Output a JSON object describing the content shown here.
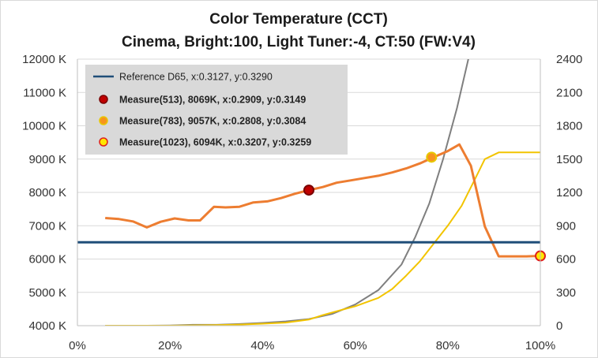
{
  "chart_data": {
    "type": "line",
    "title": "Color Temperature (CCT)",
    "subtitle": "Cinema, Bright:100, Light Tuner:-4, CT:50 (FW:V4)",
    "xlabel": "",
    "ylabel": "",
    "xlim": [
      0,
      100
    ],
    "ylim": [
      4000,
      12000
    ],
    "y2lim": [
      0,
      2400
    ],
    "x_ticks": [
      "0%",
      "20%",
      "40%",
      "60%",
      "80%",
      "100%"
    ],
    "x_tick_values": [
      0,
      20,
      40,
      60,
      80,
      100
    ],
    "y_ticks": [
      "4000 K",
      "5000 K",
      "6000 K",
      "7000 K",
      "8000 K",
      "9000 K",
      "10000 K",
      "11000 K",
      "12000 K"
    ],
    "y_tick_values": [
      4000,
      5000,
      6000,
      7000,
      8000,
      9000,
      10000,
      11000,
      12000
    ],
    "y2_ticks": [
      "0",
      "300",
      "600",
      "900",
      "1200",
      "1500",
      "1800",
      "2100",
      "2400"
    ],
    "y2_tick_values": [
      0,
      300,
      600,
      900,
      1200,
      1500,
      1800,
      2100,
      2400
    ],
    "grid": true,
    "legend_position": "top-left",
    "reference": {
      "name": "Reference D65, x:0.3127, y:0.3290",
      "value": 6504,
      "color": "#1f4e79"
    },
    "series": [
      {
        "axis": "left",
        "color": "#ed7d31",
        "x": [
          6,
          9,
          12,
          15,
          18,
          21,
          24,
          26.5,
          29.5,
          32,
          35,
          38,
          41,
          44,
          47,
          50,
          53,
          56,
          59,
          62,
          65,
          68,
          71,
          74,
          77,
          80,
          82.5,
          85,
          88,
          91,
          94,
          97,
          100
        ],
        "values": [
          7230,
          7200,
          7130,
          6950,
          7120,
          7220,
          7160,
          7160,
          7570,
          7550,
          7570,
          7700,
          7730,
          7830,
          7960,
          8069,
          8160,
          8290,
          8360,
          8430,
          8500,
          8600,
          8720,
          8870,
          9057,
          9240,
          9440,
          8800,
          6980,
          6080,
          6080,
          6080,
          6094
        ]
      },
      {
        "axis": "right",
        "color": "#7f7f7f",
        "x": [
          6,
          10,
          15,
          20,
          25,
          30,
          35,
          40,
          45,
          50,
          55,
          60,
          65,
          70,
          73,
          76,
          79,
          82,
          85
        ],
        "values": [
          0,
          0,
          0,
          2,
          8,
          8,
          15,
          25,
          38,
          60,
          105,
          190,
          320,
          550,
          800,
          1100,
          1500,
          1960,
          2500
        ]
      },
      {
        "axis": "right",
        "color": "#f2c400",
        "x": [
          6,
          10,
          15,
          20,
          25,
          30,
          35,
          40,
          45,
          50,
          53,
          56,
          60,
          65,
          68,
          71,
          74,
          77,
          80,
          83,
          86,
          88,
          91,
          94,
          97,
          100
        ],
        "values": [
          0,
          0,
          0,
          0,
          3,
          5,
          10,
          18,
          28,
          55,
          95,
          130,
          175,
          250,
          330,
          450,
          580,
          740,
          900,
          1080,
          1330,
          1500,
          1560,
          1560,
          1560,
          1560
        ]
      }
    ],
    "measures": [
      {
        "name": "Measure(513), 8069K, x:0.2909, y:0.3149",
        "x": 50,
        "value": 8069,
        "fill": "#c00000",
        "stroke": "#7a0000"
      },
      {
        "name": "Measure(783), 9057K, x:0.2808, y:0.3084",
        "x": 76.5,
        "value": 9057,
        "fill": "#f7941d",
        "stroke": "#e8c800"
      },
      {
        "name": "Measure(1023), 6094K, x:0.3207, y:0.3259",
        "x": 100,
        "value": 6094,
        "fill": "#ffe600",
        "stroke": "#e0201a"
      }
    ],
    "colors": {
      "grid": "#d9d9d9",
      "axis": "#bfbfbf",
      "legend_bg": "#d9d9d9",
      "border": "#d9d9d9"
    }
  }
}
